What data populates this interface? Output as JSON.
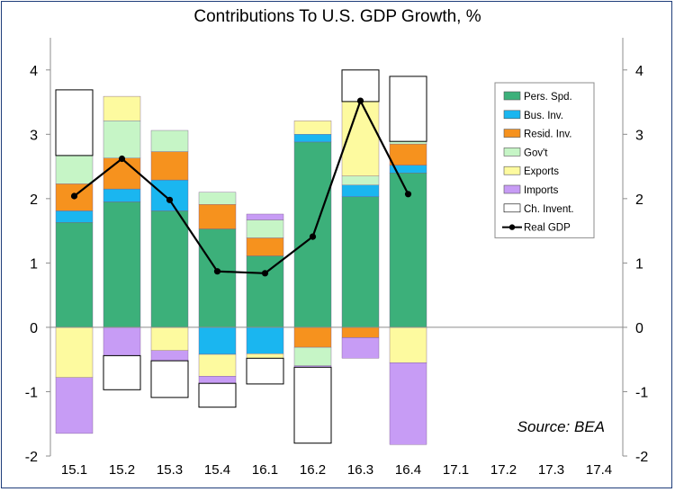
{
  "chart_data": {
    "type": "bar",
    "stacked": true,
    "title": "Contributions To U.S. GDP Growth, %",
    "categories": [
      "15.1",
      "15.2",
      "15.3",
      "15.4",
      "16.1",
      "16.2",
      "16.3",
      "16.4",
      "17.1",
      "17.2",
      "17.3",
      "17.4"
    ],
    "ylim": [
      -2,
      4.5
    ],
    "yticks": [
      -2,
      -1,
      0,
      1,
      2,
      3,
      4
    ],
    "grid": false,
    "legend_position": "top-right",
    "annotation": "Source: BEA",
    "series": [
      {
        "name": "Pers. Spd.",
        "color": "#3cb07a",
        "values": [
          1.63,
          1.95,
          1.81,
          1.53,
          1.11,
          2.88,
          2.03,
          2.4,
          null,
          null,
          null,
          null
        ]
      },
      {
        "name": "Bus. Inv.",
        "color": "#1ab6f0",
        "values": [
          0.18,
          0.2,
          0.48,
          -0.42,
          -0.41,
          0.12,
          0.18,
          0.12,
          null,
          null,
          null,
          null
        ]
      },
      {
        "name": "Resid. Inv.",
        "color": "#f6921e",
        "values": [
          0.42,
          0.48,
          0.44,
          0.38,
          0.28,
          -0.31,
          -0.16,
          0.33,
          null,
          null,
          null,
          null
        ]
      },
      {
        "name": "Gov't",
        "color": "#c6f5c6",
        "values": [
          0.44,
          0.58,
          0.33,
          0.19,
          0.28,
          -0.29,
          0.14,
          0.04,
          null,
          null,
          null,
          null
        ]
      },
      {
        "name": "Exports",
        "color": "#fdfa9f",
        "values": [
          -0.78,
          0.38,
          -0.36,
          -0.34,
          -0.07,
          0.21,
          1.16,
          -0.55,
          null,
          null,
          null,
          null
        ]
      },
      {
        "name": "Imports",
        "color": "#c79cf5",
        "values": [
          -0.87,
          -0.44,
          -0.16,
          -0.11,
          0.09,
          -0.02,
          -0.32,
          -1.27,
          null,
          null,
          null,
          null
        ]
      },
      {
        "name": "Ch. Invent.",
        "color": "#ffffff",
        "values": [
          1.02,
          -0.53,
          -0.57,
          -0.37,
          -0.4,
          -1.18,
          0.49,
          1.01,
          null,
          null,
          null,
          null
        ]
      }
    ],
    "line_series": {
      "name": "Real GDP",
      "color": "#000000",
      "values": [
        2.04,
        2.62,
        1.98,
        0.87,
        0.84,
        1.41,
        3.52,
        2.07,
        null,
        null,
        null,
        null
      ]
    }
  }
}
